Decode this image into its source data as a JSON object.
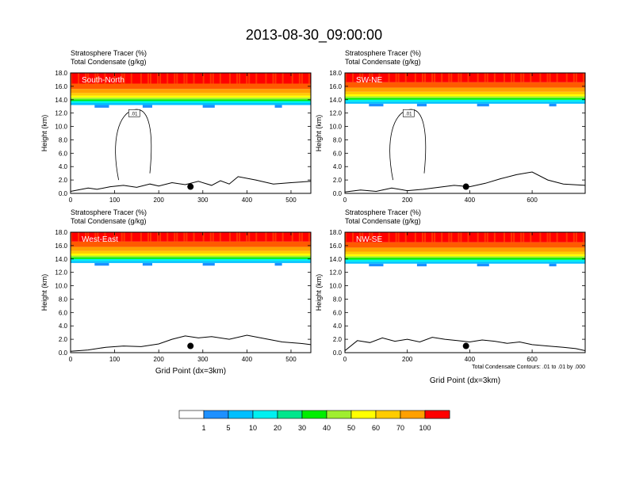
{
  "title": "2013-08-30_09:00:00",
  "colors": {
    "levels": [
      "#ffffff",
      "#1e90ff",
      "#00bfff",
      "#00f0f0",
      "#00e68c",
      "#00ee00",
      "#a0ee30",
      "#ffff00",
      "#ffcc00",
      "#ffa000",
      "#ff5a00",
      "#ff0000"
    ],
    "contour": "#000000",
    "marker": "#000000"
  },
  "colorbar": {
    "labels": [
      "1",
      "5",
      "10",
      "20",
      "30",
      "40",
      "50",
      "60",
      "70",
      "100"
    ]
  },
  "chart_data": [
    {
      "type": "heatmap",
      "panel_label": "South-North",
      "subtitle_1": "Stratosphere Tracer   (%)",
      "subtitle_2": "Total Condensate   (g/kg)",
      "ylabel": "Height (km)",
      "xlabel": "",
      "xlim": [
        0,
        545
      ],
      "ylim": [
        0,
        18
      ],
      "xticks": [
        "0",
        "100",
        "200",
        "300",
        "400",
        "500"
      ],
      "xtick_values": [
        0,
        100,
        200,
        300,
        400,
        500
      ],
      "yticks": [
        "0.0",
        "2.0",
        "4.0",
        "6.0",
        "8.0",
        "10.0",
        "12.0",
        "14.0",
        "16.0",
        "18.0"
      ],
      "tracer_base_km": 13.6,
      "terrain": {
        "x": [
          0,
          40,
          60,
          90,
          120,
          150,
          180,
          200,
          230,
          260,
          290,
          320,
          340,
          360,
          380,
          420,
          460,
          500,
          545
        ],
        "y": [
          0.3,
          0.8,
          0.6,
          1.0,
          1.2,
          0.9,
          1.4,
          1.1,
          1.6,
          1.3,
          1.8,
          1.2,
          1.9,
          1.4,
          2.5,
          2.0,
          1.4,
          1.6,
          1.8
        ]
      },
      "contour_label": ".01",
      "marker": {
        "x": 272,
        "y": 1.0
      }
    },
    {
      "type": "heatmap",
      "panel_label": "SW-NE",
      "subtitle_1": "Stratosphere Tracer   (%)",
      "subtitle_2": "Total Condensate   (g/kg)",
      "ylabel": "Height (km)",
      "xlabel": "",
      "xlim": [
        0,
        770
      ],
      "ylim": [
        0,
        18
      ],
      "xticks": [
        "0",
        "200",
        "400",
        "600"
      ],
      "xtick_values": [
        0,
        200,
        400,
        600
      ],
      "yticks": [
        "0.0",
        "2.0",
        "4.0",
        "6.0",
        "8.0",
        "10.0",
        "12.0",
        "14.0",
        "16.0",
        "18.0"
      ],
      "tracer_base_km": 13.8,
      "terrain": {
        "x": [
          0,
          50,
          100,
          150,
          200,
          250,
          300,
          350,
          400,
          450,
          500,
          550,
          600,
          650,
          700,
          770
        ],
        "y": [
          0.2,
          0.5,
          0.3,
          0.8,
          0.4,
          0.6,
          0.9,
          1.2,
          1.0,
          1.5,
          2.2,
          2.8,
          3.2,
          2.0,
          1.4,
          1.2
        ]
      },
      "contour_label": ".01",
      "marker": {
        "x": 388,
        "y": 1.0
      }
    },
    {
      "type": "heatmap",
      "panel_label": "West-East",
      "subtitle_1": "Stratosphere Tracer   (%)",
      "subtitle_2": "Total Condensate   (g/kg)",
      "ylabel": "Height (km)",
      "xlabel": "Grid Point (dx=3km)",
      "xlim": [
        0,
        545
      ],
      "ylim": [
        0,
        18
      ],
      "xticks": [
        "0",
        "100",
        "200",
        "300",
        "400",
        "500"
      ],
      "xtick_values": [
        0,
        100,
        200,
        300,
        400,
        500
      ],
      "yticks": [
        "0.0",
        "2.0",
        "4.0",
        "6.0",
        "8.0",
        "10.0",
        "12.0",
        "14.0",
        "16.0",
        "18.0"
      ],
      "tracer_base_km": 13.8,
      "terrain": {
        "x": [
          0,
          40,
          80,
          120,
          160,
          200,
          230,
          260,
          290,
          320,
          360,
          400,
          440,
          480,
          520,
          545
        ],
        "y": [
          0.2,
          0.4,
          0.8,
          1.0,
          0.9,
          1.3,
          2.0,
          2.5,
          2.2,
          2.4,
          2.0,
          2.6,
          2.1,
          1.6,
          1.4,
          1.2
        ]
      },
      "contour_label": "",
      "marker": {
        "x": 272,
        "y": 1.0
      }
    },
    {
      "type": "heatmap",
      "panel_label": "NW-SE",
      "subtitle_1": "Stratosphere Tracer   (%)",
      "subtitle_2": "Total Condensate   (g/kg)",
      "ylabel": "Height (km)",
      "xlabel": "Grid Point (dx=3km)",
      "xlim": [
        0,
        770
      ],
      "ylim": [
        0,
        18
      ],
      "xticks": [
        "0",
        "200",
        "400",
        "600"
      ],
      "xtick_values": [
        0,
        200,
        400,
        600
      ],
      "yticks": [
        "0.0",
        "2.0",
        "4.0",
        "6.0",
        "8.0",
        "10.0",
        "12.0",
        "14.0",
        "16.0",
        "18.0"
      ],
      "tracer_base_km": 13.7,
      "terrain": {
        "x": [
          0,
          40,
          80,
          120,
          160,
          200,
          240,
          280,
          320,
          360,
          400,
          440,
          480,
          520,
          560,
          600,
          650,
          700,
          740,
          770
        ],
        "y": [
          0.3,
          1.8,
          1.5,
          2.2,
          1.7,
          2.0,
          1.6,
          2.3,
          2.0,
          1.8,
          1.6,
          1.9,
          1.7,
          1.4,
          1.6,
          1.2,
          1.0,
          0.8,
          0.6,
          0.3
        ]
      },
      "contour_label": "",
      "marker": {
        "x": 388,
        "y": 1.0
      },
      "footnote": "Total Condensate Contours: .01 to .01 by .000"
    }
  ]
}
